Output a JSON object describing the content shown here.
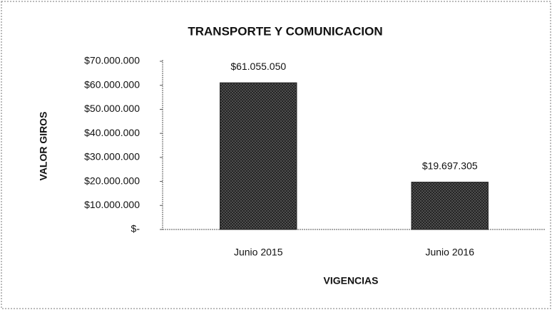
{
  "chart_data": {
    "type": "bar",
    "title": "TRANSPORTE Y COMUNICACION",
    "x_label": "VIGENCIAS",
    "y_label": "VALOR GIROS",
    "categories": [
      "Junio 2015",
      "Junio 2016"
    ],
    "values": [
      61055050,
      19697305
    ],
    "value_labels": [
      "$61.055.050",
      "$19.697.305"
    ],
    "color": "#1e1e1e",
    "ylim": [
      0,
      70000000
    ],
    "yticks": [
      {
        "value": 0,
        "label": "$-"
      },
      {
        "value": 10000000,
        "label": "$10.000.000"
      },
      {
        "value": 20000000,
        "label": "$20.000.000"
      },
      {
        "value": 30000000,
        "label": "$30.000.000"
      },
      {
        "value": 40000000,
        "label": "$40.000.000"
      },
      {
        "value": 50000000,
        "label": "$50.000.000"
      },
      {
        "value": 60000000,
        "label": "$60.000.000"
      },
      {
        "value": 70000000,
        "label": "$70.000.000"
      }
    ],
    "grid": false
  }
}
